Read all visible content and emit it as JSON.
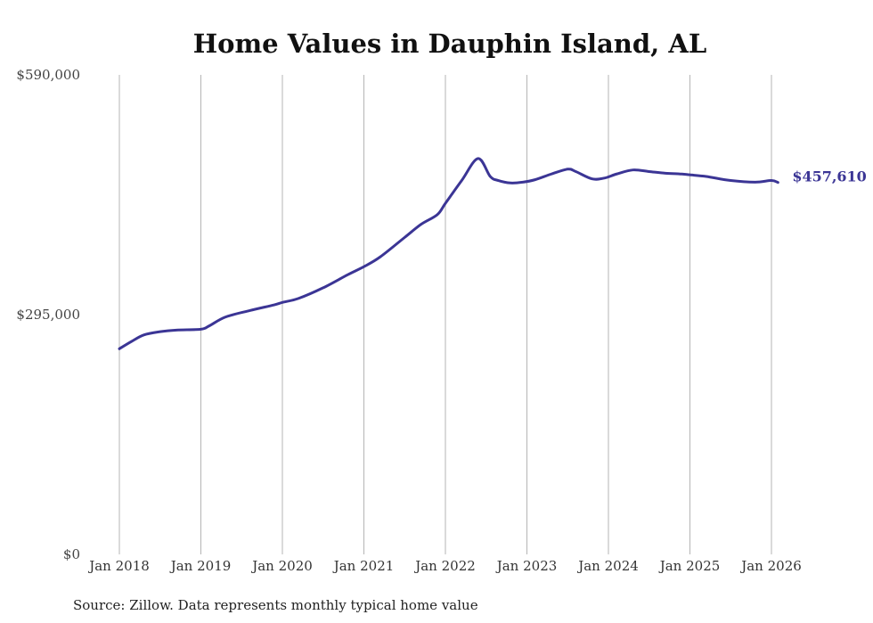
{
  "chart_data": {
    "type": "line",
    "title": "Home Values in Dauphin Island, AL",
    "xlabel": "",
    "ylabel": "",
    "ylim": [
      0,
      590000
    ],
    "yticks": [
      0,
      295000,
      590000
    ],
    "ytick_labels": [
      "$0",
      "$295,000",
      "$590,000"
    ],
    "xticks": [
      2018,
      2019,
      2020,
      2021,
      2022,
      2023,
      2024,
      2025,
      2026
    ],
    "xtick_labels": [
      "Jan 2018",
      "Jan 2019",
      "Jan 2020",
      "Jan 2021",
      "Jan 2022",
      "Jan 2023",
      "Jan 2024",
      "Jan 2025",
      "Jan 2026"
    ],
    "xlim": [
      2018,
      2026
    ],
    "grid": "vertical",
    "series": [
      {
        "name": "Typical home value",
        "color": "#3b3595",
        "end_label": "$457,610",
        "x": [
          2018.0,
          2018.15,
          2018.3,
          2018.5,
          2018.7,
          2019.0,
          2019.1,
          2019.3,
          2019.6,
          2019.9,
          2020.0,
          2020.2,
          2020.5,
          2020.8,
          2021.0,
          2021.2,
          2021.5,
          2021.7,
          2021.9,
          2022.0,
          2022.2,
          2022.4,
          2022.55,
          2022.65,
          2022.8,
          2022.95,
          2023.1,
          2023.3,
          2023.5,
          2023.6,
          2023.8,
          2023.95,
          2024.1,
          2024.3,
          2024.5,
          2024.7,
          2024.9,
          2025.0,
          2025.2,
          2025.5,
          2025.8,
          2026.0,
          2026.08
        ],
        "values": [
          253000,
          262000,
          270000,
          274000,
          276000,
          277000,
          281000,
          292000,
          300000,
          307000,
          310000,
          315000,
          328000,
          344000,
          354000,
          366000,
          390000,
          406000,
          418000,
          432000,
          460000,
          487000,
          465000,
          460000,
          457000,
          458000,
          461000,
          468000,
          474000,
          471000,
          462000,
          463000,
          468000,
          473000,
          471000,
          469000,
          468000,
          467000,
          465000,
          460000,
          458000,
          460000,
          457610
        ]
      }
    ]
  },
  "source": "Source: Zillow. Data represents monthly typical home value"
}
